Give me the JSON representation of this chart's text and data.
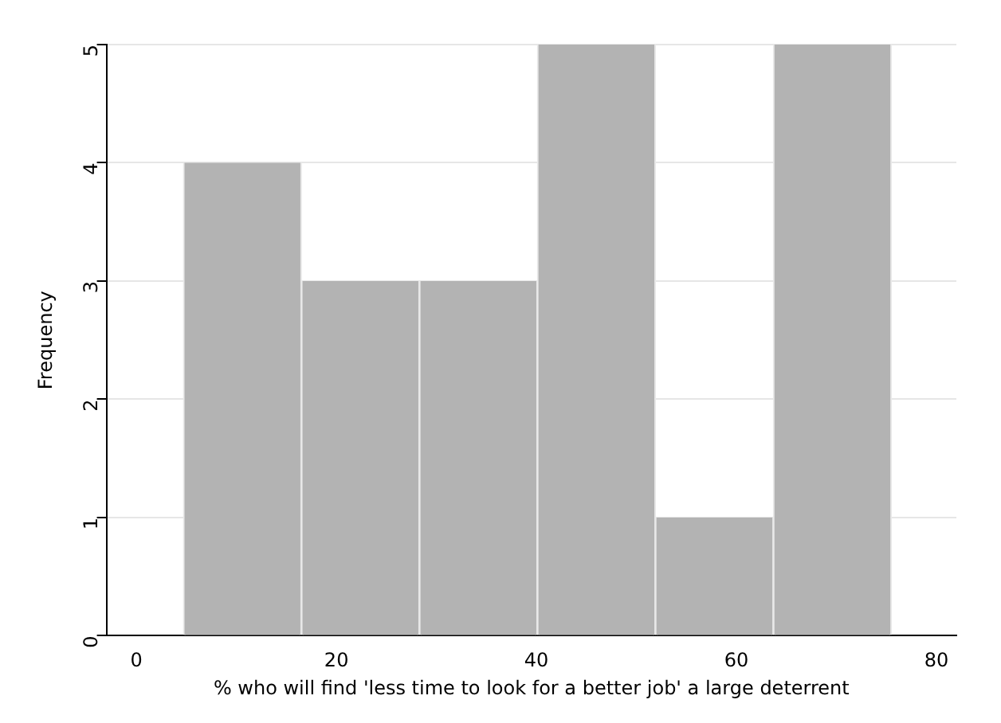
{
  "chart_data": {
    "type": "histogram",
    "xlabel": "% who will find 'less time to look for a better job' a large deterrent",
    "ylabel": "Frequency",
    "bins": [
      4.7,
      16.5,
      28.3,
      40.1,
      51.9,
      63.7,
      75.5
    ],
    "values": [
      4,
      3,
      3,
      5,
      1,
      5
    ],
    "color": "#b3b3b3",
    "xlim": [
      -3,
      82
    ],
    "xticks": [
      0,
      20,
      40,
      60,
      80
    ],
    "ylim": [
      0,
      5
    ],
    "yticks": [
      0,
      1,
      2,
      3,
      4,
      5
    ],
    "grid": "y",
    "legend": false
  }
}
